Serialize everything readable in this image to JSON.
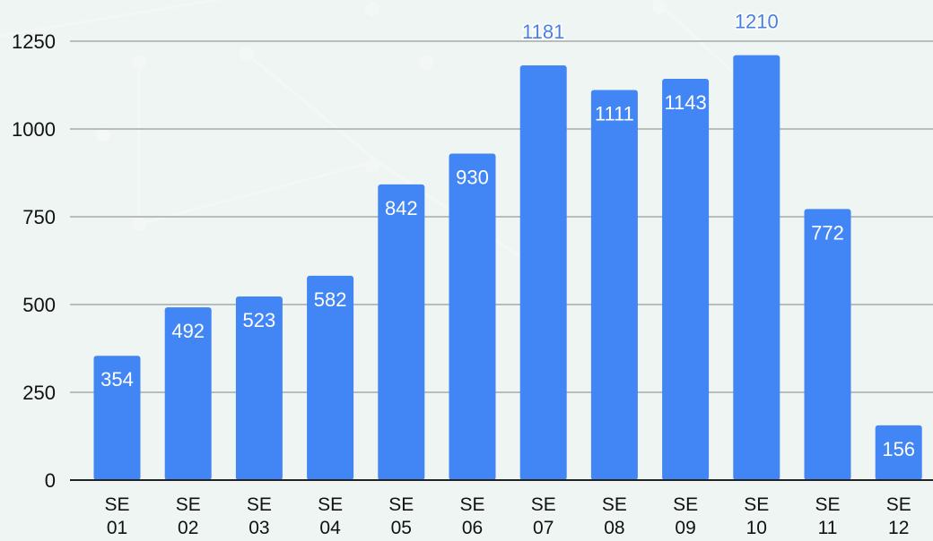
{
  "chart_data": {
    "type": "bar",
    "categories": [
      [
        "SE",
        "01"
      ],
      [
        "SE",
        "02"
      ],
      [
        "SE",
        "03"
      ],
      [
        "SE",
        "04"
      ],
      [
        "SE",
        "05"
      ],
      [
        "SE",
        "06"
      ],
      [
        "SE",
        "07"
      ],
      [
        "SE",
        "08"
      ],
      [
        "SE",
        "09"
      ],
      [
        "SE",
        "10"
      ],
      [
        "SE",
        "11"
      ],
      [
        "SE",
        "12"
      ]
    ],
    "values": [
      354,
      492,
      523,
      582,
      842,
      930,
      1181,
      1111,
      1143,
      1210,
      772,
      156
    ],
    "title": "",
    "xlabel": "",
    "ylabel": "",
    "ylim": [
      0,
      1250
    ],
    "yticks": [
      0,
      250,
      500,
      750,
      1000,
      1250
    ],
    "grid": true,
    "legend": "none",
    "data_labels": "inside-top (outside above bar when the bar reaches the top of the plot)"
  },
  "colors": {
    "bar": "#4285f4",
    "label_inside": "#ffffff",
    "label_outside": "#4a7fe0",
    "grid": "#b8bdbb",
    "axis": "#222222",
    "text": "#111111",
    "background": "#eef5f2"
  }
}
